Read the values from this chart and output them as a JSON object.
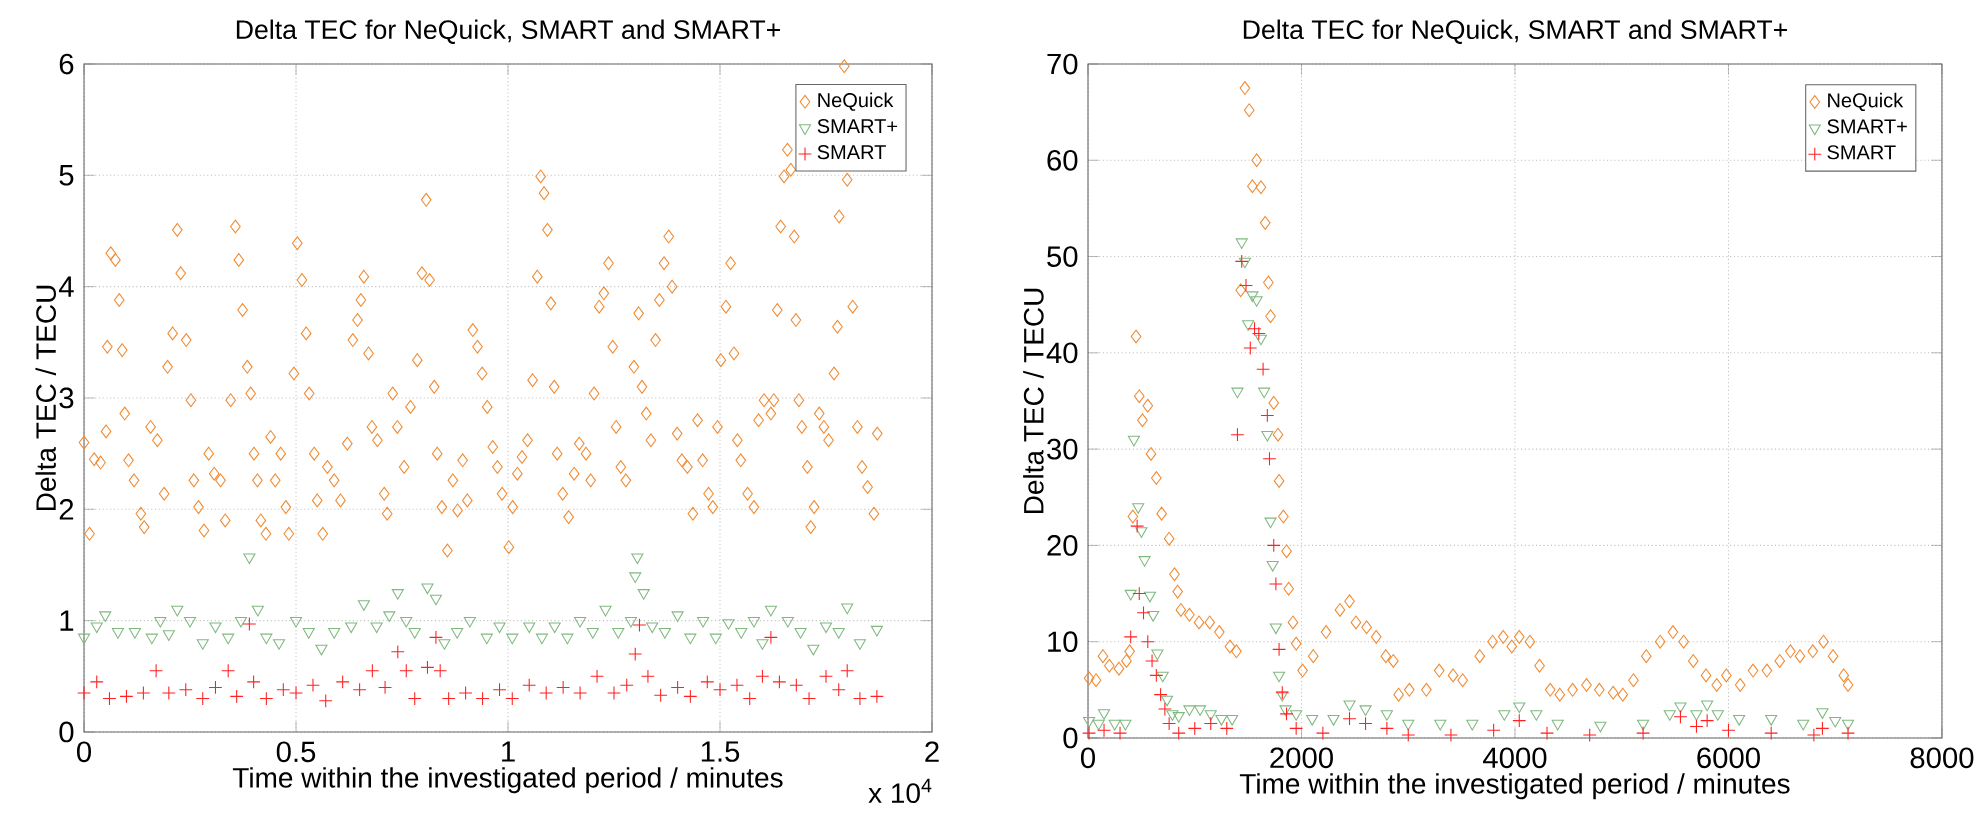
{
  "chart_data": [
    {
      "type": "scatter",
      "title": "Delta TEC for NeQuick, SMART and SMART+",
      "xlabel": "Time within the investigated period / minutes",
      "ylabel": "Delta TEC / TECU",
      "xlim": [
        0,
        2
      ],
      "xticks": [
        0,
        0.5,
        1,
        1.5,
        2
      ],
      "ylim": [
        0,
        6
      ],
      "yticks": [
        0,
        1,
        2,
        3,
        4,
        5,
        6
      ],
      "grid": true,
      "legend": "top right",
      "annotations": [
        "x 10$^{4}$"
      ],
      "series": [
        {
          "name": "NeQuick",
          "color": "#f08a30",
          "marker": "diamond",
          "x": [
            0,
            0.013,
            0.024,
            0.039,
            0.052,
            0.055,
            0.063,
            0.074,
            0.083,
            0.09,
            0.096,
            0.105,
            0.118,
            0.134,
            0.142,
            0.157,
            0.173,
            0.189,
            0.197,
            0.209,
            0.22,
            0.228,
            0.241,
            0.252,
            0.259,
            0.27,
            0.283,
            0.294,
            0.307,
            0.322,
            0.333,
            0.346,
            0.357,
            0.365,
            0.374,
            0.385,
            0.393,
            0.401,
            0.409,
            0.417,
            0.429,
            0.44,
            0.451,
            0.464,
            0.476,
            0.483,
            0.495,
            0.503,
            0.514,
            0.524,
            0.531,
            0.543,
            0.55,
            0.563,
            0.574,
            0.59,
            0.605,
            0.621,
            0.634,
            0.645,
            0.653,
            0.66,
            0.671,
            0.679,
            0.692,
            0.708,
            0.715,
            0.728,
            0.739,
            0.755,
            0.77,
            0.786,
            0.797,
            0.807,
            0.815,
            0.826,
            0.833,
            0.844,
            0.857,
            0.87,
            0.881,
            0.893,
            0.904,
            0.917,
            0.928,
            0.939,
            0.951,
            0.964,
            0.975,
            0.986,
            1.002,
            1.011,
            1.022,
            1.033,
            1.046,
            1.058,
            1.069,
            1.077,
            1.085,
            1.093,
            1.101,
            1.109,
            1.116,
            1.129,
            1.143,
            1.156,
            1.168,
            1.184,
            1.195,
            1.203,
            1.215,
            1.226,
            1.237,
            1.247,
            1.255,
            1.266,
            1.278,
            1.297,
            1.308,
            1.316,
            1.326,
            1.337,
            1.348,
            1.357,
            1.368,
            1.379,
            1.387,
            1.399,
            1.41,
            1.423,
            1.436,
            1.447,
            1.459,
            1.473,
            1.483,
            1.494,
            1.502,
            1.514,
            1.525,
            1.533,
            1.541,
            1.549,
            1.565,
            1.58,
            1.591,
            1.604,
            1.62,
            1.627,
            1.635,
            1.643,
            1.651,
            1.659,
            1.667,
            1.675,
            1.679,
            1.686,
            1.693,
            1.706,
            1.714,
            1.722,
            1.734,
            1.745,
            1.756,
            1.769,
            1.777,
            1.781,
            1.793,
            1.8,
            1.813,
            1.824,
            1.835,
            1.848,
            1.863,
            1.871
          ],
          "values": [
            2.6,
            1.78,
            2.45,
            2.42,
            2.7,
            3.46,
            4.3,
            4.24,
            3.88,
            3.43,
            2.86,
            2.44,
            2.26,
            1.96,
            1.84,
            2.74,
            2.62,
            2.14,
            3.28,
            3.58,
            4.51,
            4.12,
            3.52,
            2.98,
            2.26,
            2.02,
            1.81,
            2.5,
            2.32,
            2.26,
            1.9,
            2.98,
            4.54,
            4.24,
            3.79,
            3.28,
            3.04,
            2.5,
            2.26,
            1.9,
            1.78,
            2.65,
            2.26,
            2.5,
            2.02,
            1.78,
            3.22,
            4.39,
            4.06,
            3.58,
            3.04,
            2.5,
            2.08,
            1.78,
            2.38,
            2.26,
            2.08,
            2.59,
            3.52,
            3.7,
            3.88,
            4.09,
            3.4,
            2.74,
            2.62,
            2.14,
            1.96,
            3.04,
            2.74,
            2.38,
            2.92,
            3.34,
            4.12,
            4.78,
            4.06,
            3.1,
            2.5,
            2.02,
            1.63,
            2.26,
            1.99,
            2.44,
            2.08,
            3.61,
            3.46,
            3.22,
            2.92,
            2.56,
            2.38,
            2.14,
            1.66,
            2.02,
            2.32,
            2.47,
            2.62,
            3.16,
            4.09,
            4.99,
            4.84,
            4.51,
            3.85,
            3.1,
            2.5,
            2.14,
            1.93,
            2.32,
            2.59,
            2.5,
            2.26,
            3.04,
            3.82,
            3.94,
            4.21,
            3.46,
            2.74,
            2.38,
            2.26,
            3.28,
            3.76,
            3.1,
            2.86,
            2.62,
            3.52,
            3.88,
            4.21,
            4.45,
            4.0,
            2.68,
            2.44,
            2.38,
            1.96,
            2.8,
            2.44,
            2.14,
            2.02,
            2.74,
            3.34,
            3.82,
            4.21,
            3.4,
            2.62,
            2.44,
            2.14,
            2.02,
            2.8,
            2.98,
            2.86,
            2.98,
            3.79,
            4.54,
            4.99,
            5.23,
            5.05,
            4.45,
            3.7,
            2.98,
            2.74,
            2.38,
            1.84,
            2.02,
            2.86,
            2.74,
            2.62,
            3.22,
            3.64,
            4.63,
            5.98,
            4.96,
            3.82,
            2.74,
            2.38,
            2.2,
            1.96,
            2.68
          ]
        },
        {
          "name": "SMART+",
          "color": "#80b880",
          "marker": "triangle",
          "x": [
            0,
            0.03,
            0.05,
            0.08,
            0.12,
            0.16,
            0.18,
            0.2,
            0.22,
            0.25,
            0.28,
            0.31,
            0.34,
            0.37,
            0.39,
            0.41,
            0.43,
            0.46,
            0.5,
            0.53,
            0.56,
            0.59,
            0.63,
            0.66,
            0.69,
            0.72,
            0.74,
            0.76,
            0.78,
            0.81,
            0.83,
            0.85,
            0.88,
            0.91,
            0.95,
            0.98,
            1.01,
            1.05,
            1.08,
            1.11,
            1.14,
            1.17,
            1.2,
            1.23,
            1.26,
            1.29,
            1.3,
            1.305,
            1.32,
            1.34,
            1.37,
            1.4,
            1.43,
            1.46,
            1.49,
            1.52,
            1.55,
            1.58,
            1.6,
            1.62,
            1.66,
            1.69,
            1.72,
            1.75,
            1.78,
            1.8,
            1.83,
            1.87
          ],
          "values": [
            0.85,
            0.95,
            1.05,
            0.9,
            0.9,
            0.85,
            1.0,
            0.88,
            1.1,
            1.0,
            0.8,
            0.95,
            0.85,
            1.0,
            1.57,
            1.1,
            0.85,
            0.8,
            1.0,
            0.9,
            0.75,
            0.9,
            0.95,
            1.15,
            0.95,
            1.05,
            1.25,
            1.0,
            0.9,
            1.3,
            1.2,
            0.8,
            0.9,
            1.0,
            0.85,
            0.95,
            0.85,
            0.95,
            0.85,
            0.95,
            0.85,
            1.0,
            0.9,
            1.1,
            0.9,
            1.0,
            1.4,
            1.57,
            1.25,
            0.95,
            0.9,
            1.05,
            0.85,
            1.0,
            0.85,
            0.98,
            0.9,
            1.0,
            0.8,
            1.1,
            1.0,
            0.9,
            0.75,
            0.95,
            0.9,
            1.12,
            0.8,
            0.92
          ]
        },
        {
          "name": "SMART",
          "color": "#ff2020",
          "marker": "cross",
          "x": [
            0,
            0.03,
            0.06,
            0.1,
            0.14,
            0.17,
            0.2,
            0.24,
            0.28,
            0.31,
            0.34,
            0.36,
            0.39,
            0.4,
            0.43,
            0.47,
            0.5,
            0.54,
            0.57,
            0.61,
            0.65,
            0.68,
            0.71,
            0.74,
            0.76,
            0.78,
            0.81,
            0.83,
            0.84,
            0.86,
            0.9,
            0.94,
            0.98,
            1.01,
            1.05,
            1.09,
            1.13,
            1.17,
            1.21,
            1.25,
            1.28,
            1.3,
            1.31,
            1.33,
            1.36,
            1.4,
            1.43,
            1.47,
            1.5,
            1.54,
            1.57,
            1.6,
            1.62,
            1.64,
            1.68,
            1.71,
            1.75,
            1.78,
            1.8,
            1.83,
            1.87
          ],
          "values": [
            0.35,
            0.45,
            0.3,
            0.32,
            0.35,
            0.55,
            0.35,
            0.38,
            0.3,
            0.4,
            0.55,
            0.32,
            0.97,
            0.45,
            0.3,
            0.38,
            0.35,
            0.42,
            0.28,
            0.45,
            0.38,
            0.55,
            0.4,
            0.72,
            0.55,
            0.3,
            0.58,
            0.85,
            0.55,
            0.3,
            0.35,
            0.3,
            0.38,
            0.3,
            0.42,
            0.35,
            0.4,
            0.35,
            0.5,
            0.35,
            0.42,
            0.7,
            0.96,
            0.5,
            0.33,
            0.4,
            0.32,
            0.45,
            0.38,
            0.42,
            0.3,
            0.5,
            0.85,
            0.45,
            0.42,
            0.3,
            0.5,
            0.38,
            0.55,
            0.3,
            0.32
          ]
        }
      ]
    },
    {
      "type": "scatter",
      "title": "Delta TEC for NeQuick, SMART and SMART+",
      "xlabel": "Time within the investigated period / minutes",
      "ylabel": "Delta TEC / TECU",
      "xlim": [
        0,
        8000
      ],
      "xticks": [
        0,
        2000,
        4000,
        6000,
        8000
      ],
      "ylim": [
        0,
        70
      ],
      "yticks": [
        0,
        10,
        20,
        30,
        40,
        50,
        60,
        70
      ],
      "grid": true,
      "legend": "top right",
      "series": [
        {
          "name": "NeQuick",
          "color": "#f08a30",
          "marker": "diamond",
          "x": [
            10,
            75,
            140,
            200,
            290,
            360,
            390,
            420,
            450,
            480,
            510,
            560,
            590,
            640,
            690,
            760,
            810,
            840,
            870,
            950,
            1040,
            1140,
            1230,
            1330,
            1390,
            1430,
            1470,
            1510,
            1540,
            1580,
            1620,
            1660,
            1690,
            1710,
            1740,
            1780,
            1790,
            1830,
            1860,
            1880,
            1920,
            1950,
            2010,
            2110,
            2230,
            2360,
            2450,
            2510,
            2610,
            2700,
            2790,
            2860,
            2910,
            3010,
            3170,
            3290,
            3420,
            3510,
            3670,
            3790,
            3890,
            3970,
            4040,
            4140,
            4230,
            4330,
            4420,
            4540,
            4670,
            4790,
            4920,
            5010,
            5110,
            5230,
            5360,
            5480,
            5580,
            5670,
            5790,
            5890,
            5980,
            6110,
            6230,
            6360,
            6480,
            6580,
            6670,
            6790,
            6890,
            6980,
            7080,
            7120
          ],
          "values": [
            6.2,
            6,
            8.5,
            7.5,
            7.2,
            8,
            9,
            23,
            41.7,
            35.5,
            33,
            34.5,
            29.5,
            27,
            23.3,
            20.7,
            17,
            15.2,
            13.3,
            12.8,
            12,
            12,
            11,
            9.5,
            9,
            46.5,
            67.5,
            65.2,
            57.3,
            60,
            57.2,
            53.5,
            47.3,
            43.8,
            34.8,
            31.5,
            26.7,
            23,
            19.4,
            15.5,
            12,
            9.8,
            7,
            8.5,
            11,
            13.3,
            14.2,
            12,
            11.5,
            10.5,
            8.5,
            8,
            4.5,
            5,
            5,
            7,
            6.5,
            6,
            8.5,
            10,
            10.5,
            9.5,
            10.5,
            10,
            7.5,
            5,
            4.5,
            5,
            5.5,
            5,
            4.7,
            4.5,
            6,
            8.5,
            10,
            11,
            10,
            8,
            6.5,
            5.5,
            6.5,
            5.5,
            7,
            7,
            8,
            9,
            8.5,
            9,
            10,
            8.5,
            6.5,
            5.5
          ]
        },
        {
          "name": "SMART+",
          "color": "#80b880",
          "marker": "triangle",
          "x": [
            10,
            100,
            150,
            250,
            350,
            400,
            430,
            470,
            500,
            530,
            580,
            610,
            650,
            700,
            740,
            790,
            850,
            950,
            1050,
            1150,
            1250,
            1350,
            1400,
            1440,
            1470,
            1500,
            1540,
            1580,
            1620,
            1650,
            1680,
            1710,
            1730,
            1760,
            1790,
            1820,
            1850,
            1950,
            2100,
            2300,
            2450,
            2600,
            2800,
            3000,
            3300,
            3600,
            3900,
            4040,
            4200,
            4400,
            4800,
            5200,
            5450,
            5550,
            5700,
            5800,
            5900,
            6100,
            6400,
            6700,
            6880,
            7000,
            7120
          ],
          "values": [
            1.8,
            1.5,
            2.6,
            1.5,
            1.5,
            15,
            31,
            24,
            21.5,
            18.5,
            14.8,
            12.8,
            8.8,
            6.5,
            4,
            2.5,
            2.3,
            3,
            3,
            2.5,
            2,
            2,
            36,
            51.5,
            49.5,
            43,
            46,
            45.5,
            41.5,
            36,
            31.5,
            22.5,
            18,
            11.5,
            6.5,
            4.5,
            3,
            2.5,
            2,
            2,
            3.5,
            3,
            2.5,
            1.5,
            1.5,
            1.5,
            2.5,
            3.3,
            2.5,
            1.5,
            1.3,
            1.5,
            2.5,
            3.3,
            2.5,
            3.5,
            2.5,
            2,
            2,
            1.5,
            2.7,
            1.8,
            1.5
          ]
        },
        {
          "name": "SMART",
          "color": "#ff2020",
          "marker": "cross",
          "x": [
            10,
            150,
            300,
            400,
            460,
            480,
            520,
            560,
            600,
            640,
            680,
            720,
            760,
            850,
            1000,
            1150,
            1300,
            1400,
            1440,
            1480,
            1520,
            1560,
            1600,
            1640,
            1680,
            1700,
            1740,
            1760,
            1790,
            1820,
            1860,
            1950,
            2200,
            2450,
            2600,
            2800,
            3000,
            3400,
            3800,
            4040,
            4300,
            4700,
            5200,
            5550,
            5700,
            5800,
            6000,
            6400,
            6800,
            6880,
            7120
          ],
          "values": [
            0.5,
            0.8,
            0.5,
            10.5,
            22,
            15,
            13,
            10,
            8,
            6.5,
            4.5,
            3,
            1.5,
            0.5,
            1,
            1.5,
            1,
            31.5,
            49.5,
            47,
            40.5,
            42.5,
            42,
            38.3,
            33.5,
            29,
            20,
            16,
            9.2,
            4.7,
            2.5,
            1,
            0.5,
            2,
            1.5,
            1,
            0.3,
            0.3,
            0.8,
            1.8,
            0.5,
            0.3,
            0.5,
            2.2,
            1.2,
            1.8,
            0.8,
            0.5,
            0.3,
            1,
            0.5
          ]
        }
      ]
    }
  ]
}
